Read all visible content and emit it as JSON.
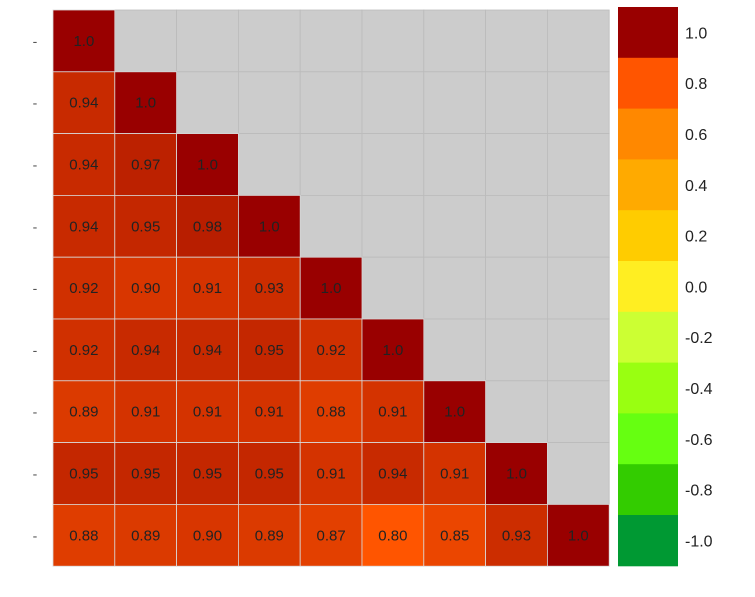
{
  "chart_data": {
    "type": "heatmap",
    "title": "",
    "triangle": "lower",
    "row_tick_labels": [
      "-",
      "-",
      "-",
      "-",
      "-",
      "-",
      "-",
      "-",
      "-"
    ],
    "matrix": [
      [
        "1.0"
      ],
      [
        "0.94",
        "1.0"
      ],
      [
        "0.94",
        "0.97",
        "1.0"
      ],
      [
        "0.94",
        "0.95",
        "0.98",
        "1.0"
      ],
      [
        "0.92",
        "0.90",
        "0.91",
        "0.93",
        "1.0"
      ],
      [
        "0.92",
        "0.94",
        "0.94",
        "0.95",
        "0.92",
        "1.0"
      ],
      [
        "0.89",
        "0.91",
        "0.91",
        "0.91",
        "0.88",
        "0.91",
        "1.0"
      ],
      [
        "0.95",
        "0.95",
        "0.95",
        "0.95",
        "0.91",
        "0.94",
        "0.91",
        "1.0"
      ],
      [
        "0.88",
        "0.89",
        "0.90",
        "0.89",
        "0.87",
        "0.80",
        "0.85",
        "0.93",
        "1.0"
      ]
    ],
    "empty_cell_color": "#cccccc",
    "colorbar": {
      "range": [
        -1.0,
        1.0
      ],
      "tick_labels": [
        "1.0",
        "0.8",
        "0.6",
        "0.4",
        "0.2",
        "0.0",
        "-0.2",
        "-0.4",
        "-0.6",
        "-0.8",
        "-1.0"
      ],
      "bands": [
        "#990000",
        "#ff5500",
        "#ff8800",
        "#ffaa00",
        "#ffcc00",
        "#ffee22",
        "#ccff33",
        "#99ff11",
        "#66ff11",
        "#33cc00",
        "#009933"
      ]
    }
  }
}
